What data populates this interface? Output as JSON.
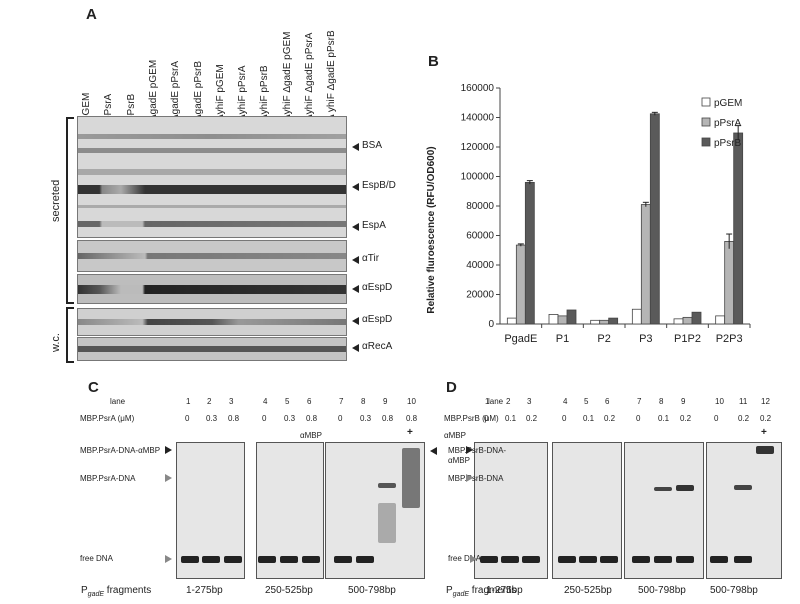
{
  "panel_a": {
    "label": "A",
    "lanes": [
      "pGEM",
      "pPsrA",
      "pPsrB",
      "ΔgadE pGEM",
      "ΔgadE pPsrA",
      "ΔgadE pPsrB",
      "ΔyhiF pGEM",
      "ΔyhiF pPsrA",
      "ΔyhiF pPsrB",
      "ΔyhiF ΔgadE pGEM",
      "ΔyhiF ΔgadE pPsrA",
      "Δ yhiF ΔgadE pPsrB"
    ],
    "bands": [
      "BSA",
      "EspB/D",
      "EspA",
      "αTir",
      "αEspD",
      "αEspD",
      "αRecA"
    ],
    "group_secreted": "secreted",
    "group_wc": "w.c."
  },
  "panel_b": {
    "label": "B"
  },
  "chart_data": {
    "type": "bar",
    "categories": [
      "PgadE",
      "P1",
      "P2",
      "P3",
      "P1P2",
      "P2P3"
    ],
    "series": [
      {
        "name": "pGEM",
        "values": [
          4000,
          6500,
          2500,
          10000,
          3500,
          5500
        ],
        "color": "#ffffff"
      },
      {
        "name": "pPsrA",
        "values": [
          53500,
          5500,
          2500,
          81000,
          4500,
          56000
        ],
        "color": "#b5b5b5"
      },
      {
        "name": "pPsrB",
        "values": [
          96000,
          9500,
          4000,
          142500,
          8000,
          129500
        ],
        "color": "#5a5a5a"
      }
    ],
    "errors": [
      [
        0,
        0,
        0,
        0,
        0,
        0
      ],
      [
        800,
        0,
        0,
        1500,
        0,
        5000
      ],
      [
        1200,
        0,
        0,
        1000,
        0,
        5000
      ]
    ],
    "ylabel": "Relative fluroescence (RFU/OD600)",
    "ylim": [
      0,
      160000
    ],
    "yticks": [
      "0",
      "20000",
      "40000",
      "60000",
      "80000",
      "100000",
      "120000",
      "140000",
      "160000"
    ],
    "legend_position": "top-right"
  },
  "panel_c": {
    "label": "C",
    "lane_header": "lane",
    "lane_numbers": [
      "1",
      "2",
      "3",
      "4",
      "5",
      "6",
      "7",
      "8",
      "9",
      "10"
    ],
    "conc_label": "MBP.PsrA (μM)",
    "conc_values": [
      "0",
      "0.3",
      "0.8",
      "0",
      "0.3",
      "0.8",
      "0",
      "0.3",
      "0.8",
      "0.8"
    ],
    "ambp_label": "αMBP",
    "ambp_plus": "+",
    "complex_label": "MBP.PsrA-DNA-αMBP",
    "bound_label": "MBP.PsrA-DNA",
    "free_label": "free DNA",
    "fragment_prefix": "P",
    "fragment_sub": "gadE",
    "fragment_suffix": " fragments",
    "fragments": [
      "1-275bp",
      "250-525bp",
      "500-798bp"
    ]
  },
  "panel_d": {
    "label": "D",
    "lane_header": "lane",
    "lane_numbers": [
      "1",
      "2",
      "3",
      "4",
      "5",
      "6",
      "7",
      "8",
      "9",
      "10",
      "11",
      "12"
    ],
    "conc_label": "MBP.PsrB (μM)",
    "conc_values": [
      "0",
      "0.1",
      "0.2",
      "0",
      "0.1",
      "0.2",
      "0",
      "0.1",
      "0.2",
      "0",
      "0.2",
      "0.2"
    ],
    "ambp_label": "αMBP",
    "ambp_plus": "+",
    "complex_label": "MBP.PsrB-DNA-αMBP",
    "bound_label": "MBP.PsrB-DNA",
    "free_label": "free DNA",
    "fragment_prefix": "P",
    "fragment_sub": "gadE",
    "fragment_suffix": " fragments",
    "fragments": [
      "1-275bp",
      "250-525bp",
      "500-798bp",
      "500-798bp"
    ]
  }
}
